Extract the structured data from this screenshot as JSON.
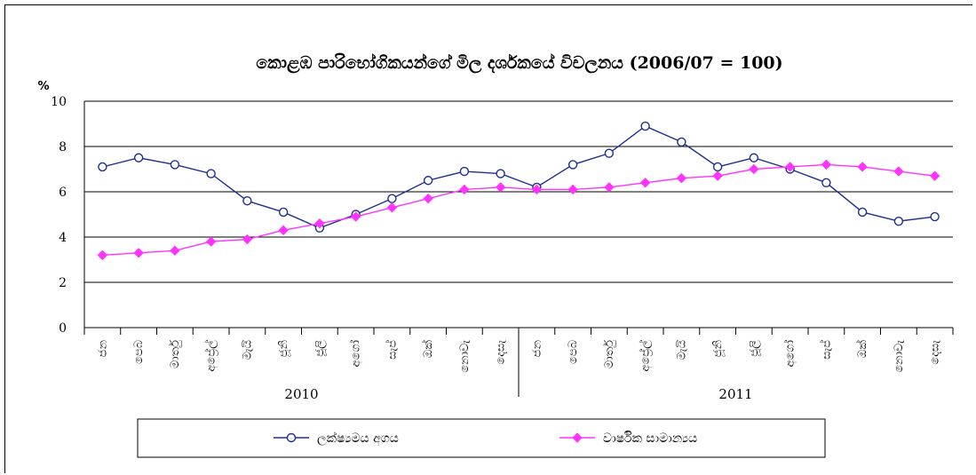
{
  "chart_data": {
    "type": "line",
    "title": "කොළඹ පාරිභෝගිකයන්ගේ මිල දර්ශකයේ විචලනය (2006/07 = 100)",
    "ylabel": "%",
    "ylim": [
      0,
      10
    ],
    "yticks": [
      0,
      2,
      4,
      6,
      8,
      10
    ],
    "grid": true,
    "legend": "bottom",
    "categories": [
      "ජන",
      "පෙබ",
      "මාර්තු",
      "අප්‍රේල්",
      "මැයි",
      "ජූනි",
      "ජූලි",
      "අගෝ",
      "සැප්",
      "ඔක්",
      "නොවැ",
      "දෙසැ",
      "ජන",
      "පෙබ",
      "මාර්තු",
      "අප්‍රේල්",
      "මැයි",
      "ජූනි",
      "ජූලි",
      "අගෝ",
      "සැප්",
      "ඔක්",
      "නොවැ",
      "දෙසැ"
    ],
    "years": [
      {
        "label": "2010",
        "start": 0,
        "end": 11
      },
      {
        "label": "2011",
        "start": 12,
        "end": 23
      }
    ],
    "series": [
      {
        "name": "ලක්ෂ්‍යමය අගය",
        "color": "#1f2f8f",
        "marker": "circle",
        "values": [
          7.1,
          7.5,
          7.2,
          6.8,
          5.6,
          5.1,
          4.4,
          5.0,
          5.7,
          6.5,
          6.9,
          6.8,
          6.2,
          7.2,
          7.7,
          8.9,
          8.2,
          7.1,
          7.5,
          7.0,
          6.4,
          5.1,
          4.7,
          4.9
        ]
      },
      {
        "name": "වාර්ෂික සාමාන්‍යය",
        "color": "#ff33ff",
        "marker": "diamond",
        "values": [
          3.2,
          3.3,
          3.4,
          3.8,
          3.9,
          4.3,
          4.6,
          4.9,
          5.3,
          5.7,
          6.1,
          6.2,
          6.1,
          6.1,
          6.2,
          6.4,
          6.6,
          6.7,
          7.0,
          7.1,
          7.2,
          7.1,
          6.9,
          6.7
        ]
      }
    ]
  }
}
